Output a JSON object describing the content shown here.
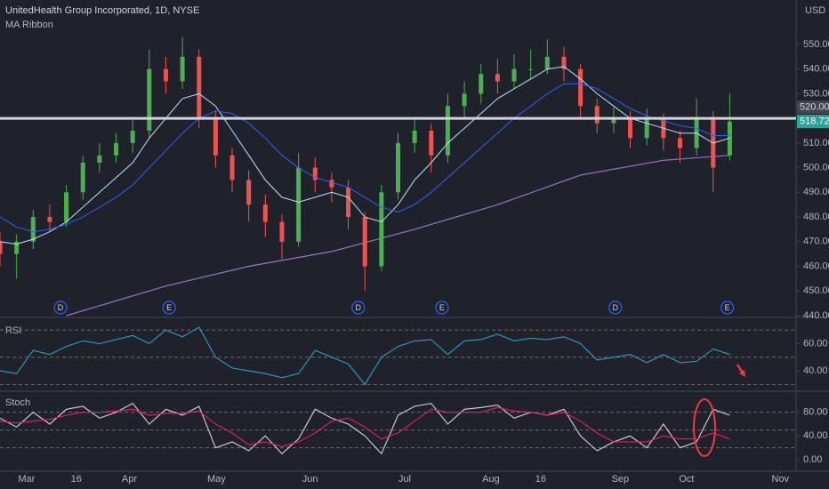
{
  "chart_data": {
    "type": "candlestick",
    "title": "UnitedHealth Group Incorporated, 1D, NYSE",
    "subtitle": "MA Ribbon",
    "currency": "USD",
    "xlim": [
      0,
      96
    ],
    "xticks": [
      {
        "value": 3.2,
        "label": "Mar"
      },
      {
        "value": 9.2,
        "label": "16"
      },
      {
        "value": 15.6,
        "label": "Apr"
      },
      {
        "value": 26.1,
        "label": "May"
      },
      {
        "value": 37.4,
        "label": "Jun"
      },
      {
        "value": 48.8,
        "label": "Jul"
      },
      {
        "value": 59.2,
        "label": "Aug"
      },
      {
        "value": 65.2,
        "label": "16"
      },
      {
        "value": 74.8,
        "label": "Sep"
      },
      {
        "value": 82.8,
        "label": "Oct"
      },
      {
        "value": 94.1,
        "label": "Nov"
      }
    ],
    "ylim": [
      440,
      568
    ],
    "yticks": [
      {
        "value": 440,
        "label": "440.00"
      },
      {
        "value": 450,
        "label": "450.00"
      },
      {
        "value": 460,
        "label": "460.00"
      },
      {
        "value": 470,
        "label": "470.00"
      },
      {
        "value": 480,
        "label": "480.00"
      },
      {
        "value": 490,
        "label": "490.00"
      },
      {
        "value": 500,
        "label": "500.00"
      },
      {
        "value": 510,
        "label": "510.00"
      },
      {
        "value": 530,
        "label": "530.00"
      },
      {
        "value": 540,
        "label": "540.00"
      },
      {
        "value": 550,
        "label": "550.00"
      }
    ],
    "x": [
      0,
      2,
      4,
      6,
      8,
      10,
      12,
      14,
      16,
      18,
      20,
      22,
      24,
      26,
      28,
      30,
      32,
      34,
      36,
      38,
      40,
      42,
      44,
      46,
      48,
      50,
      52,
      54,
      56,
      58,
      60,
      62,
      64,
      66,
      68,
      70,
      72,
      74,
      76,
      78,
      80,
      82,
      84,
      86,
      88
    ],
    "candles": {
      "up_color": "#4caf50",
      "down_color": "#ef5350",
      "open": [
        470,
        465,
        470,
        480,
        478,
        490,
        502,
        505,
        510,
        515,
        540,
        535,
        545,
        520,
        505,
        495,
        485,
        478,
        470,
        500,
        495,
        492,
        480,
        460,
        490,
        510,
        515,
        505,
        525,
        530,
        538,
        535,
        540,
        540,
        545,
        540,
        525,
        518,
        520,
        512,
        520,
        512,
        508,
        520,
        505
      ],
      "high": [
        474,
        473,
        483,
        485,
        493,
        505,
        510,
        514,
        520,
        548,
        545,
        553,
        548,
        523,
        508,
        499,
        489,
        481,
        506,
        504,
        498,
        495,
        482,
        493,
        514,
        520,
        518,
        530,
        535,
        542,
        544,
        546,
        548,
        552,
        549,
        542,
        528,
        525,
        523,
        524,
        522,
        515,
        528,
        523,
        530
      ],
      "low": [
        460,
        455,
        467,
        474,
        476,
        487,
        498,
        502,
        506,
        512,
        530,
        532,
        516,
        500,
        490,
        478,
        472,
        463,
        468,
        490,
        486,
        475,
        450,
        458,
        487,
        506,
        498,
        502,
        520,
        526,
        530,
        532,
        536,
        538,
        535,
        520,
        514,
        514,
        508,
        509,
        507,
        502,
        505,
        490,
        503
      ],
      "close": [
        465,
        470,
        480,
        478,
        490,
        502,
        505,
        510,
        515,
        540,
        535,
        545,
        520,
        505,
        495,
        485,
        478,
        470,
        500,
        495,
        492,
        480,
        460,
        490,
        510,
        515,
        505,
        525,
        530,
        538,
        535,
        540,
        540,
        545,
        540,
        525,
        518,
        520,
        512,
        520,
        512,
        508,
        520,
        500,
        518.72
      ]
    },
    "ma_lines": [
      {
        "color": "#b3e5fc",
        "values": [
          470,
          469,
          471,
          474,
          478,
          484,
          490,
          496,
          502,
          512,
          520,
          528,
          530,
          525,
          515,
          505,
          495,
          488,
          486,
          488,
          490,
          488,
          480,
          478,
          485,
          495,
          502,
          510,
          516,
          522,
          528,
          532,
          536,
          540,
          541,
          536,
          530,
          525,
          520,
          518,
          516,
          514,
          514,
          510,
          512
        ]
      },
      {
        "color": "#2962ff",
        "values": [
          480,
          476,
          474,
          475,
          477,
          480,
          484,
          488,
          493,
          500,
          507,
          514,
          520,
          523,
          522,
          518,
          512,
          505,
          500,
          496,
          494,
          492,
          488,
          484,
          482,
          485,
          490,
          496,
          502,
          508,
          514,
          520,
          525,
          530,
          534,
          534,
          532,
          528,
          524,
          521,
          519,
          517,
          516,
          513,
          513
        ]
      }
    ],
    "ma200": {
      "color": "#9575cd",
      "x": [
        8,
        20,
        30,
        40,
        50,
        60,
        70,
        80,
        88
      ],
      "values": [
        440,
        452,
        460,
        466,
        475,
        485,
        497,
        503,
        505
      ]
    },
    "hline": {
      "value": 520,
      "label": "520.00"
    },
    "last_price": {
      "value": 518.72,
      "label": "518.72"
    },
    "events": [
      {
        "x": 7.3,
        "label": "D"
      },
      {
        "x": 20.4,
        "label": "E"
      },
      {
        "x": 43.2,
        "label": "D"
      },
      {
        "x": 53.3,
        "label": "E"
      },
      {
        "x": 74.2,
        "label": "D"
      },
      {
        "x": 87.7,
        "label": "E"
      }
    ],
    "panes": [
      {
        "type": "line",
        "title": "RSI",
        "ylim": [
          27,
          76
        ],
        "yticks": [
          {
            "value": 60,
            "label": "60.00"
          },
          {
            "value": 40,
            "label": "40.00"
          }
        ],
        "levels": [
          70,
          50,
          30
        ],
        "series": [
          {
            "color": "#2aa0c9",
            "values": [
              40,
              38,
              55,
              52,
              58,
              62,
              60,
              63,
              66,
              60,
              70,
              65,
              72,
              50,
              42,
              40,
              38,
              35,
              38,
              55,
              50,
              45,
              30,
              50,
              58,
              62,
              63,
              52,
              62,
              63,
              67,
              62,
              64,
              63,
              65,
              60,
              48,
              50,
              52,
              46,
              52,
              46,
              47,
              56,
              52
            ]
          }
        ]
      },
      {
        "type": "line",
        "title": "Stoch",
        "ylim": [
          -18,
          111
        ],
        "yticks": [
          {
            "value": 80,
            "label": "80.00"
          },
          {
            "value": 40,
            "label": "40.00"
          },
          {
            "value": 0,
            "label": "0.00"
          }
        ],
        "levels": [
          80,
          50,
          20
        ],
        "series": [
          {
            "color": "#d1d4dc",
            "values": [
              70,
              55,
              80,
              60,
              85,
              90,
              70,
              80,
              95,
              60,
              85,
              75,
              90,
              20,
              30,
              15,
              40,
              10,
              35,
              85,
              70,
              60,
              40,
              10,
              75,
              90,
              95,
              60,
              85,
              88,
              92,
              70,
              80,
              75,
              85,
              40,
              15,
              30,
              40,
              20,
              60,
              20,
              30,
              85,
              75
            ]
          },
          {
            "color": "#e91e63",
            "values": [
              65,
              62,
              65,
              68,
              75,
              80,
              80,
              82,
              85,
              75,
              78,
              78,
              82,
              60,
              45,
              25,
              30,
              22,
              30,
              45,
              65,
              70,
              55,
              35,
              45,
              65,
              85,
              80,
              80,
              80,
              88,
              82,
              80,
              75,
              80,
              65,
              45,
              30,
              30,
              30,
              40,
              35,
              35,
              45,
              35
            ]
          }
        ]
      }
    ]
  }
}
